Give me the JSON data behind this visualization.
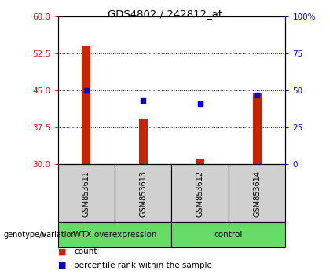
{
  "title": "GDS4802 / 242812_at",
  "samples": [
    "GSM853611",
    "GSM853613",
    "GSM853612",
    "GSM853614"
  ],
  "bar_values": [
    54.2,
    39.2,
    30.9,
    44.5
  ],
  "bar_base": 30,
  "percentile_values": [
    50.0,
    43.0,
    41.0,
    47.0
  ],
  "bar_color": "#cc2200",
  "dot_color": "#0000cc",
  "left_ylim": [
    30,
    60
  ],
  "left_yticks": [
    30,
    37.5,
    45,
    52.5,
    60
  ],
  "right_yticks": [
    0,
    25,
    50,
    75,
    100
  ],
  "right_ylim": [
    0,
    100
  ],
  "hlines": [
    37.5,
    45,
    52.5
  ],
  "group_labels": [
    "WTX overexpression",
    "control"
  ],
  "group_bg_color": "#66dd66",
  "sample_box_color": "#d0d0d0",
  "genotype_label": "genotype/variation",
  "legend_count_label": "count",
  "legend_pct_label": "percentile rank within the sample",
  "bar_width": 0.15
}
